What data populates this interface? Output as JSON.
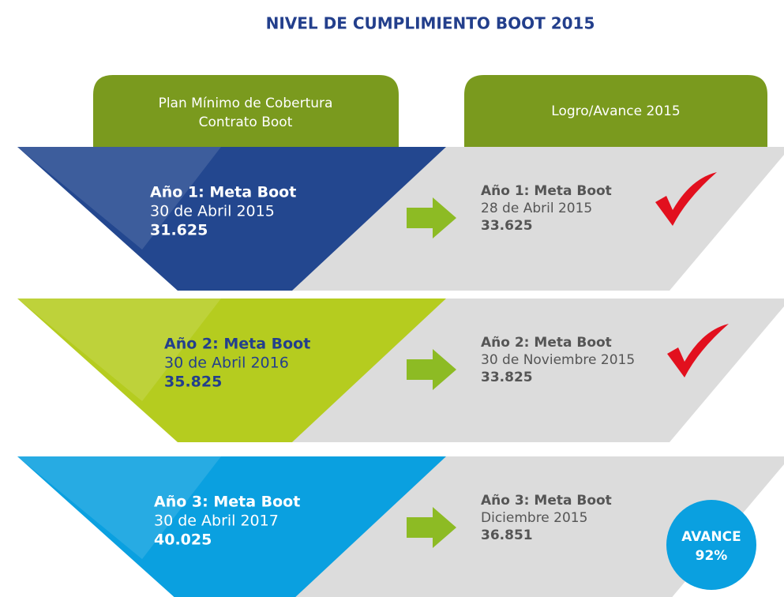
{
  "title": "NIVEL DE CUMPLIMIENTO BOOT 2015",
  "headers": {
    "left": [
      "Plan Mínimo de Cobertura",
      "Contrato Boot"
    ],
    "right": "Logro/Avance 2015"
  },
  "rows": [
    {
      "goal": {
        "label": "Año 1: Meta Boot",
        "date": "30 de Abril 2015",
        "value": "31.625"
      },
      "achieved": {
        "label": "Año 1: Meta Boot",
        "date": "28 de Abril 2015",
        "value": "33.625"
      }
    },
    {
      "goal": {
        "label": "Año 2: Meta Boot",
        "date": "30 de Abril 2016",
        "value": "35.825"
      },
      "achieved": {
        "label": "Año 2: Meta Boot",
        "date": "30 de Noviembre 2015",
        "value": "33.825"
      }
    },
    {
      "goal": {
        "label": "Año 3: Meta Boot",
        "date": "30 de Abril 2017",
        "value": "40.025"
      },
      "achieved": {
        "label": "Año 3: Meta Boot",
        "date": "Diciembre 2015",
        "value": "36.851"
      }
    }
  ],
  "badge": [
    "AVANCE",
    "92%"
  ]
}
